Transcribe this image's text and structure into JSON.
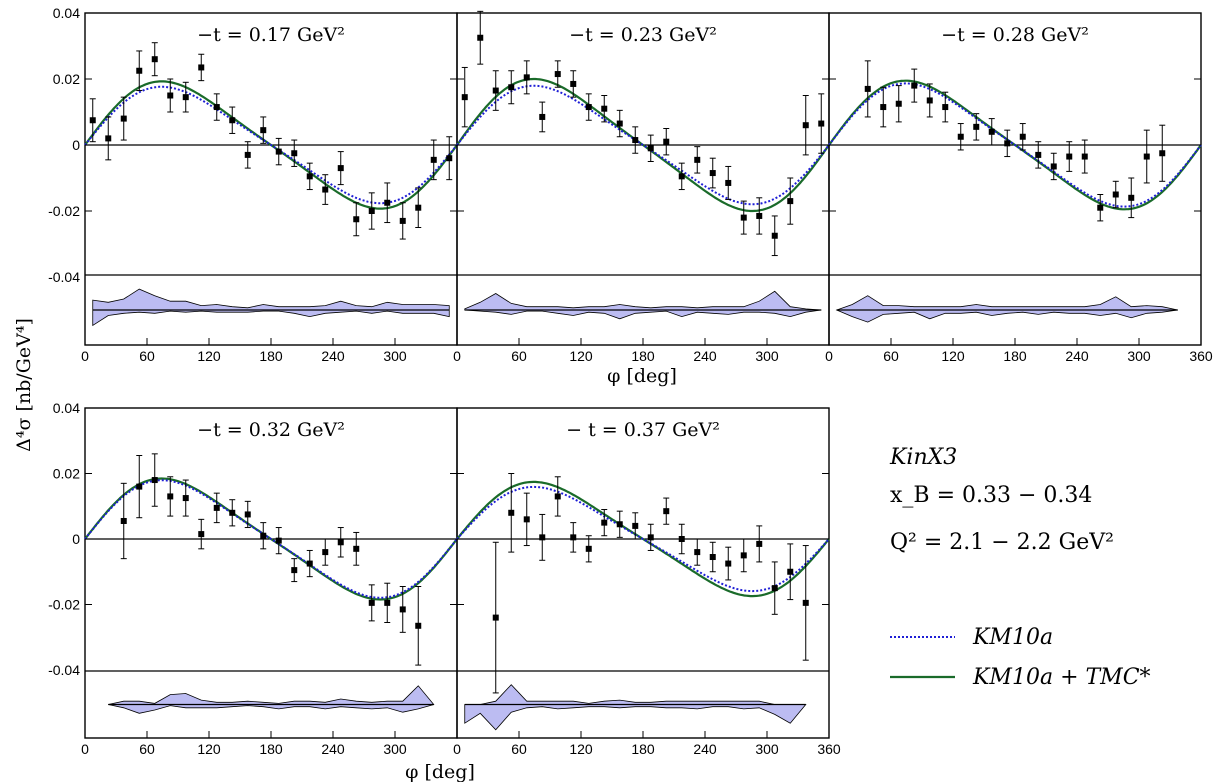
{
  "figure": {
    "ylabel": "Δ⁴σ  [nb/GeV⁴]",
    "xlabel": "φ  [deg]",
    "info": {
      "name": "KinX3",
      "xb": "x_B = 0.33 − 0.34",
      "q2": "Q² = 2.1 − 2.2 GeV²"
    },
    "legend": [
      {
        "label": "KM10a",
        "color": "#1f1fd6",
        "style": "dotted"
      },
      {
        "label": "KM10a + TMC*",
        "color": "#1a6b2a",
        "style": "solid"
      }
    ],
    "colors": {
      "band": "#bcbcf2",
      "band_edge": "#000000",
      "point": "#000000"
    }
  },
  "chart_data": [
    {
      "type": "scatter",
      "title": "−t = 0.17 GeV²",
      "xlim": [
        0,
        360
      ],
      "ylim": [
        -0.04,
        0.04
      ],
      "xticks": [
        "0",
        "60",
        "120",
        "180",
        "240",
        "300"
      ],
      "yticks": [
        "0.04",
        "0.02",
        "0",
        "-0.02",
        "-0.04"
      ],
      "points": [
        [
          7.5,
          0.0075,
          0.0065
        ],
        [
          22.5,
          0.002,
          0.0065
        ],
        [
          37.5,
          0.008,
          0.0065
        ],
        [
          52.5,
          0.0225,
          0.006
        ],
        [
          67.5,
          0.026,
          0.005
        ],
        [
          82.5,
          0.015,
          0.005
        ],
        [
          97.5,
          0.0145,
          0.0045
        ],
        [
          112.5,
          0.0235,
          0.004
        ],
        [
          127.5,
          0.0115,
          0.004
        ],
        [
          142.5,
          0.0075,
          0.004
        ],
        [
          157.5,
          -0.003,
          0.004
        ],
        [
          172.5,
          0.0045,
          0.004
        ],
        [
          187.5,
          -0.002,
          0.004
        ],
        [
          202.5,
          -0.0025,
          0.004
        ],
        [
          217.5,
          -0.0095,
          0.004
        ],
        [
          232.5,
          -0.0135,
          0.0045
        ],
        [
          247.5,
          -0.007,
          0.005
        ],
        [
          262.5,
          -0.0225,
          0.005
        ],
        [
          277.5,
          -0.02,
          0.0055
        ],
        [
          292.5,
          -0.0175,
          0.006
        ],
        [
          307.5,
          -0.023,
          0.0055
        ],
        [
          322.5,
          -0.019,
          0.006
        ],
        [
          337.5,
          -0.0045,
          0.006
        ],
        [
          352.5,
          -0.004,
          0.0065
        ]
      ],
      "curves": {
        "km10a_amp": 0.0172,
        "tmc_amp": 0.0188
      },
      "band": [
        [
          7.5,
          0.0045,
          -0.007
        ],
        [
          22.5,
          0.0035,
          -0.0025
        ],
        [
          37.5,
          0.005,
          -0.0015
        ],
        [
          52.5,
          0.0095,
          -0.001
        ],
        [
          67.5,
          0.0065,
          -0.0015
        ],
        [
          82.5,
          0.004,
          -0.0005
        ],
        [
          97.5,
          0.004,
          -0.001
        ],
        [
          112.5,
          0.002,
          -0.0005
        ],
        [
          127.5,
          0.0025,
          -0.001
        ],
        [
          142.5,
          0.0015,
          -0.001
        ],
        [
          157.5,
          0.001,
          -0.001
        ],
        [
          172.5,
          0.0025,
          -0.0005
        ],
        [
          187.5,
          0.0015,
          -0.0005
        ],
        [
          202.5,
          0.0015,
          -0.0015
        ],
        [
          217.5,
          0.0015,
          -0.003
        ],
        [
          232.5,
          0.002,
          -0.0015
        ],
        [
          247.5,
          0.004,
          -0.001
        ],
        [
          262.5,
          0.002,
          -0.0005
        ],
        [
          277.5,
          0.0015,
          -0.0015
        ],
        [
          292.5,
          0.0035,
          -0.0005
        ],
        [
          307.5,
          0.0025,
          -0.0015
        ],
        [
          322.5,
          0.0025,
          -0.0015
        ],
        [
          337.5,
          0.0025,
          -0.0015
        ],
        [
          352.5,
          0.002,
          -0.003
        ]
      ]
    },
    {
      "type": "scatter",
      "title": "−t = 0.23 GeV²",
      "xlim": [
        0,
        360
      ],
      "ylim": [
        -0.04,
        0.04
      ],
      "xticks": [
        "0",
        "60",
        "120",
        "180",
        "240",
        "300"
      ],
      "yticks": [],
      "points": [
        [
          7.5,
          0.0145,
          0.009
        ],
        [
          22.5,
          0.0325,
          0.008
        ],
        [
          37.5,
          0.0165,
          0.006
        ],
        [
          52.5,
          0.0175,
          0.005
        ],
        [
          67.5,
          0.0205,
          0.005
        ],
        [
          82.5,
          0.0085,
          0.0045
        ],
        [
          97.5,
          0.0215,
          0.004
        ],
        [
          112.5,
          0.0185,
          0.004
        ],
        [
          127.5,
          0.0115,
          0.004
        ],
        [
          142.5,
          0.011,
          0.004
        ],
        [
          157.5,
          0.0065,
          0.004
        ],
        [
          172.5,
          0.0015,
          0.004
        ],
        [
          187.5,
          -0.001,
          0.004
        ],
        [
          202.5,
          0.001,
          0.004
        ],
        [
          217.5,
          -0.0095,
          0.004
        ],
        [
          232.5,
          -0.0045,
          0.004
        ],
        [
          247.5,
          -0.0085,
          0.0045
        ],
        [
          262.5,
          -0.0115,
          0.005
        ],
        [
          277.5,
          -0.022,
          0.005
        ],
        [
          292.5,
          -0.0215,
          0.0055
        ],
        [
          307.5,
          -0.0275,
          0.006
        ],
        [
          322.5,
          -0.017,
          0.007
        ],
        [
          337.5,
          0.006,
          0.009
        ],
        [
          352.5,
          0.0065,
          0.009
        ]
      ],
      "curves": {
        "km10a_amp": 0.0175,
        "tmc_amp": 0.0195
      },
      "band": [
        [
          7.5,
          0.0005,
          0.0
        ],
        [
          22.5,
          0.0035,
          -0.0005
        ],
        [
          37.5,
          0.0075,
          -0.001
        ],
        [
          52.5,
          0.003,
          -0.002
        ],
        [
          67.5,
          0.0015,
          -0.0005
        ],
        [
          82.5,
          0.0015,
          -0.0005
        ],
        [
          97.5,
          0.0015,
          -0.0015
        ],
        [
          112.5,
          0.001,
          -0.0025
        ],
        [
          127.5,
          0.0015,
          -0.001
        ],
        [
          142.5,
          0.0015,
          -0.0015
        ],
        [
          157.5,
          0.0025,
          -0.004
        ],
        [
          172.5,
          0.0015,
          -0.0015
        ],
        [
          187.5,
          0.001,
          -0.001
        ],
        [
          202.5,
          0.0015,
          -0.0005
        ],
        [
          217.5,
          0.0015,
          -0.003
        ],
        [
          232.5,
          0.001,
          -0.001
        ],
        [
          247.5,
          0.0015,
          -0.0015
        ],
        [
          262.5,
          0.0015,
          -0.002
        ],
        [
          277.5,
          0.0015,
          -0.001
        ],
        [
          292.5,
          0.004,
          -0.001
        ],
        [
          307.5,
          0.0085,
          -0.0015
        ],
        [
          322.5,
          0.0015,
          -0.003
        ],
        [
          337.5,
          0.0005,
          -0.001
        ],
        [
          352.5,
          0.0,
          0.0
        ]
      ]
    },
    {
      "type": "scatter",
      "title": "−t = 0.28 GeV²",
      "xlim": [
        0,
        360
      ],
      "ylim": [
        -0.04,
        0.04
      ],
      "xticks": [
        "0",
        "60",
        "120",
        "180",
        "240",
        "300",
        "360"
      ],
      "yticks": [],
      "points": [
        [
          37.5,
          0.017,
          0.0085
        ],
        [
          52.5,
          0.0115,
          0.006
        ],
        [
          67.5,
          0.0125,
          0.0055
        ],
        [
          82.5,
          0.018,
          0.005
        ],
        [
          97.5,
          0.0135,
          0.005
        ],
        [
          112.5,
          0.0115,
          0.0045
        ],
        [
          127.5,
          0.0025,
          0.004
        ],
        [
          142.5,
          0.0055,
          0.004
        ],
        [
          157.5,
          0.004,
          0.004
        ],
        [
          172.5,
          0.0005,
          0.004
        ],
        [
          187.5,
          0.0025,
          0.004
        ],
        [
          202.5,
          -0.003,
          0.004
        ],
        [
          217.5,
          -0.0065,
          0.004
        ],
        [
          232.5,
          -0.0035,
          0.0045
        ],
        [
          247.5,
          -0.0035,
          0.005
        ],
        [
          262.5,
          -0.019,
          0.004
        ],
        [
          277.5,
          -0.015,
          0.004
        ],
        [
          292.5,
          -0.016,
          0.006
        ],
        [
          307.5,
          -0.0035,
          0.008
        ],
        [
          322.5,
          -0.0025,
          0.0085
        ]
      ],
      "curves": {
        "km10a_amp": 0.0182,
        "tmc_amp": 0.019
      },
      "band": [
        [
          7.5,
          0.0,
          0.0
        ],
        [
          22.5,
          0.0025,
          -0.003
        ],
        [
          37.5,
          0.0065,
          -0.0055
        ],
        [
          52.5,
          0.002,
          -0.002
        ],
        [
          67.5,
          0.002,
          -0.0015
        ],
        [
          82.5,
          0.0015,
          -0.001
        ],
        [
          97.5,
          0.0015,
          -0.004
        ],
        [
          112.5,
          0.0015,
          -0.0015
        ],
        [
          127.5,
          0.0015,
          -0.0015
        ],
        [
          142.5,
          0.0025,
          -0.001
        ],
        [
          157.5,
          0.0015,
          -0.0025
        ],
        [
          172.5,
          0.0015,
          -0.0015
        ],
        [
          187.5,
          0.0015,
          -0.001
        ],
        [
          202.5,
          0.0015,
          -0.002
        ],
        [
          217.5,
          0.0015,
          -0.001
        ],
        [
          232.5,
          0.0015,
          -0.0015
        ],
        [
          247.5,
          0.0015,
          -0.0015
        ],
        [
          262.5,
          0.0025,
          -0.0025
        ],
        [
          277.5,
          0.006,
          -0.0015
        ],
        [
          292.5,
          0.0015,
          -0.0035
        ],
        [
          307.5,
          0.002,
          -0.0015
        ],
        [
          322.5,
          0.0015,
          -0.001
        ],
        [
          337.5,
          0.0,
          0.0
        ]
      ]
    },
    {
      "type": "scatter",
      "title": "−t = 0.32 GeV²",
      "xlim": [
        0,
        360
      ],
      "ylim": [
        -0.04,
        0.04
      ],
      "xticks": [
        "0",
        "60",
        "120",
        "180",
        "240",
        "300"
      ],
      "yticks": [
        "0.04",
        "0.02",
        "0",
        "-0.02",
        "-0.04"
      ],
      "points": [
        [
          37.5,
          0.0055,
          0.0115
        ],
        [
          52.5,
          0.016,
          0.0095
        ],
        [
          67.5,
          0.018,
          0.008
        ],
        [
          82.5,
          0.013,
          0.006
        ],
        [
          97.5,
          0.0125,
          0.0055
        ],
        [
          112.5,
          0.0015,
          0.0045
        ],
        [
          127.5,
          0.0095,
          0.0045
        ],
        [
          142.5,
          0.008,
          0.004
        ],
        [
          157.5,
          0.0075,
          0.004
        ],
        [
          172.5,
          0.001,
          0.004
        ],
        [
          187.5,
          -0.0005,
          0.004
        ],
        [
          202.5,
          -0.0095,
          0.0035
        ],
        [
          217.5,
          -0.0075,
          0.004
        ],
        [
          232.5,
          -0.004,
          0.004
        ],
        [
          247.5,
          -0.001,
          0.0045
        ],
        [
          262.5,
          -0.003,
          0.005
        ],
        [
          277.5,
          -0.0195,
          0.0055
        ],
        [
          292.5,
          -0.0195,
          0.006
        ],
        [
          307.5,
          -0.0215,
          0.007
        ],
        [
          322.5,
          -0.0265,
          0.012
        ]
      ],
      "curves": {
        "km10a_amp": 0.0175,
        "tmc_amp": 0.018
      },
      "band": [
        [
          22.5,
          0.0,
          0.0
        ],
        [
          37.5,
          0.0015,
          -0.0015
        ],
        [
          52.5,
          0.0015,
          -0.004
        ],
        [
          67.5,
          0.0005,
          -0.0025
        ],
        [
          82.5,
          0.0045,
          -0.0005
        ],
        [
          97.5,
          0.005,
          -0.0015
        ],
        [
          112.5,
          0.002,
          -0.0015
        ],
        [
          127.5,
          0.001,
          -0.0015
        ],
        [
          142.5,
          0.001,
          -0.001
        ],
        [
          157.5,
          0.0015,
          -0.0005
        ],
        [
          172.5,
          0.001,
          -0.001
        ],
        [
          187.5,
          0.0005,
          -0.002
        ],
        [
          202.5,
          0.0015,
          -0.001
        ],
        [
          217.5,
          0.0015,
          -0.001
        ],
        [
          232.5,
          0.001,
          -0.002
        ],
        [
          247.5,
          0.0025,
          -0.001
        ],
        [
          262.5,
          0.0015,
          -0.0015
        ],
        [
          277.5,
          0.001,
          -0.002
        ],
        [
          292.5,
          0.0015,
          -0.0015
        ],
        [
          307.5,
          0.0015,
          -0.0035
        ],
        [
          322.5,
          0.0085,
          -0.002
        ],
        [
          337.5,
          0.0,
          0.0
        ]
      ]
    },
    {
      "type": "scatter",
      "title": "− t = 0.37 GeV²",
      "xlim": [
        0,
        360
      ],
      "ylim": [
        -0.04,
        0.04
      ],
      "xticks": [
        "0",
        "60",
        "120",
        "180",
        "240",
        "300",
        "360"
      ],
      "yticks": [],
      "points": [
        [
          37.5,
          -0.024,
          0.023
        ],
        [
          52.5,
          0.008,
          0.012
        ],
        [
          67.5,
          0.006,
          0.008
        ],
        [
          82.5,
          0.0005,
          0.007
        ],
        [
          97.5,
          0.013,
          0.006
        ],
        [
          112.5,
          0.0005,
          0.0045
        ],
        [
          127.5,
          -0.003,
          0.004
        ],
        [
          142.5,
          0.005,
          0.004
        ],
        [
          157.5,
          0.0045,
          0.004
        ],
        [
          172.5,
          0.004,
          0.004
        ],
        [
          187.5,
          0.0005,
          0.004
        ],
        [
          202.5,
          0.0085,
          0.004
        ],
        [
          217.5,
          0.0,
          0.0045
        ],
        [
          232.5,
          -0.004,
          0.004
        ],
        [
          247.5,
          -0.0055,
          0.0045
        ],
        [
          262.5,
          -0.0075,
          0.005
        ],
        [
          277.5,
          -0.005,
          0.005
        ],
        [
          292.5,
          -0.0015,
          0.0055
        ],
        [
          307.5,
          -0.015,
          0.008
        ],
        [
          322.5,
          -0.01,
          0.0085
        ],
        [
          337.5,
          -0.0195,
          0.0175
        ]
      ],
      "curves": {
        "km10a_amp": 0.0155,
        "tmc_amp": 0.017
      },
      "band": [
        [
          7.5,
          0.0,
          -0.0085
        ],
        [
          22.5,
          0.0,
          -0.004
        ],
        [
          37.5,
          0.0015,
          -0.0115
        ],
        [
          52.5,
          0.009,
          -0.0035
        ],
        [
          67.5,
          0.0015,
          -0.0015
        ],
        [
          82.5,
          0.0015,
          -0.001
        ],
        [
          97.5,
          0.0015,
          -0.002
        ],
        [
          112.5,
          0.0015,
          -0.0015
        ],
        [
          127.5,
          0.0005,
          -0.001
        ],
        [
          142.5,
          0.0015,
          -0.001
        ],
        [
          157.5,
          0.002,
          -0.0015
        ],
        [
          172.5,
          0.001,
          -0.001
        ],
        [
          187.5,
          0.001,
          -0.001
        ],
        [
          202.5,
          0.0015,
          -0.0015
        ],
        [
          217.5,
          0.0015,
          -0.0015
        ],
        [
          232.5,
          0.0015,
          -0.002
        ],
        [
          247.5,
          0.0015,
          -0.001
        ],
        [
          262.5,
          0.0015,
          -0.001
        ],
        [
          277.5,
          0.0015,
          -0.002
        ],
        [
          292.5,
          0.0015,
          -0.0015
        ],
        [
          307.5,
          0.0,
          -0.0045
        ],
        [
          322.5,
          0.0,
          -0.0085
        ],
        [
          337.5,
          0.0,
          0.0
        ]
      ]
    }
  ]
}
